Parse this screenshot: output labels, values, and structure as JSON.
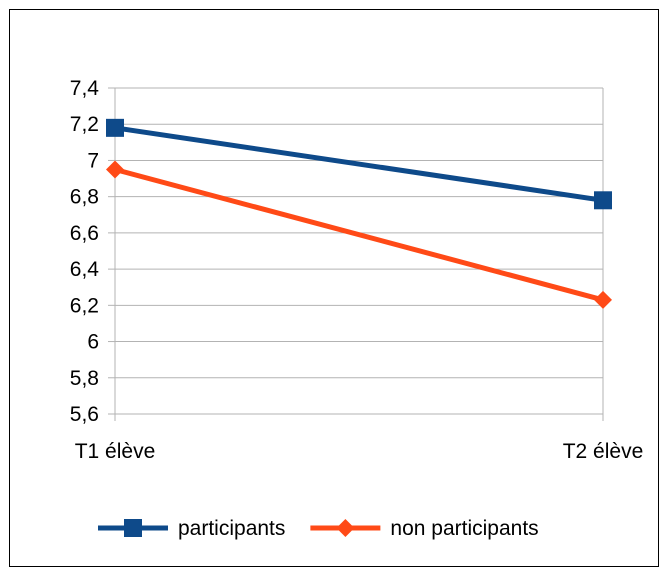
{
  "chart_data": {
    "type": "line",
    "title": "",
    "xlabel": "",
    "ylabel": "",
    "categories": [
      "T1 élève",
      "T2 élève"
    ],
    "ylim": [
      5.6,
      7.4
    ],
    "yticks": [
      5.6,
      5.8,
      6,
      6.2,
      6.4,
      6.6,
      6.8,
      7,
      7.2,
      7.4
    ],
    "ytick_labels": [
      "5,6",
      "5,8",
      "6",
      "6,2",
      "6,4",
      "6,6",
      "6,8",
      "7",
      "7,2",
      "7,4"
    ],
    "grid": true,
    "legend_position": "bottom",
    "series": [
      {
        "name": "participants",
        "values": [
          7.18,
          6.78
        ],
        "color": "#0e4a8a",
        "marker": "square"
      },
      {
        "name": "non participants",
        "values": [
          6.95,
          6.23
        ],
        "color": "#ff4a17",
        "marker": "diamond"
      }
    ]
  }
}
